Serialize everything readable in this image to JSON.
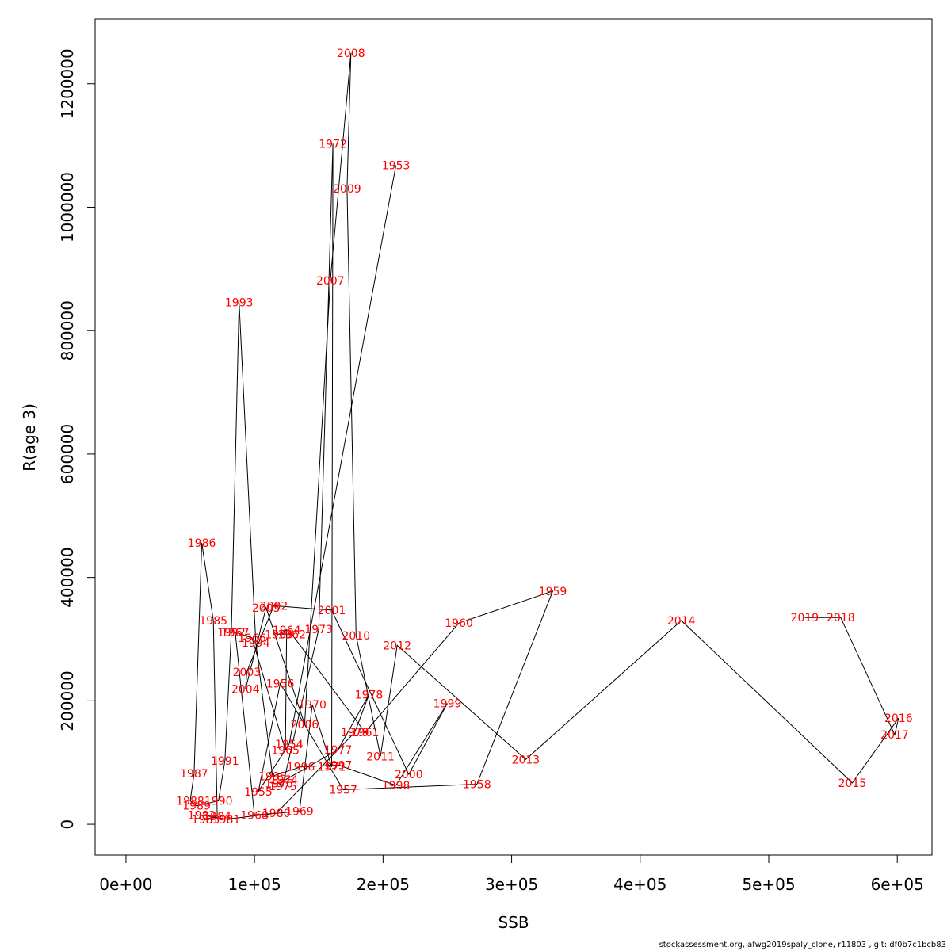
{
  "chart_data": {
    "type": "line",
    "xlabel": "SSB",
    "ylabel": "R(age 3)",
    "xlim": [
      -24000,
      627000
    ],
    "ylim": [
      -50000,
      1305000
    ],
    "xticks": [
      0,
      100000,
      200000,
      300000,
      400000,
      500000,
      600000
    ],
    "xtick_labels": [
      "0e+00",
      "1e+05",
      "2e+05",
      "3e+05",
      "4e+05",
      "5e+05",
      "6e+05"
    ],
    "yticks": [
      0,
      200000,
      400000,
      600000,
      800000,
      1000000,
      1200000
    ],
    "ytick_labels": [
      "0",
      "200000",
      "400000",
      "600000",
      "800000",
      "1000000",
      "1200000"
    ],
    "line_color": "#000000",
    "label_color": "#ff0000",
    "points": [
      {
        "year": "1953",
        "x": 210000,
        "y": 1068000
      },
      {
        "year": "1954",
        "x": 127000,
        "y": 130000
      },
      {
        "year": "1955",
        "x": 103000,
        "y": 53000
      },
      {
        "year": "1956",
        "x": 120000,
        "y": 228000
      },
      {
        "year": "1957",
        "x": 169000,
        "y": 56000
      },
      {
        "year": "1958",
        "x": 273000,
        "y": 65000
      },
      {
        "year": "1959",
        "x": 332000,
        "y": 378000
      },
      {
        "year": "1960",
        "x": 259000,
        "y": 326000
      },
      {
        "year": "1961",
        "x": 186000,
        "y": 149000
      },
      {
        "year": "1962",
        "x": 129000,
        "y": 308000
      },
      {
        "year": "1963",
        "x": 119000,
        "y": 308000
      },
      {
        "year": "1964",
        "x": 125000,
        "y": 315000
      },
      {
        "year": "1965",
        "x": 124000,
        "y": 120000
      },
      {
        "year": "1966",
        "x": 98000,
        "y": 302000
      },
      {
        "year": "1967",
        "x": 85000,
        "y": 311000
      },
      {
        "year": "1968",
        "x": 100000,
        "y": 15000
      },
      {
        "year": "1969",
        "x": 135000,
        "y": 21000
      },
      {
        "year": "1970",
        "x": 145000,
        "y": 194000
      },
      {
        "year": "1971",
        "x": 160000,
        "y": 93000
      },
      {
        "year": "1972",
        "x": 161000,
        "y": 1103000
      },
      {
        "year": "1973",
        "x": 150000,
        "y": 316000
      },
      {
        "year": "1974",
        "x": 123000,
        "y": 72000
      },
      {
        "year": "1975",
        "x": 122000,
        "y": 62000
      },
      {
        "year": "1976",
        "x": 119000,
        "y": 66000
      },
      {
        "year": "1977",
        "x": 165000,
        "y": 121000
      },
      {
        "year": "1978",
        "x": 189000,
        "y": 210000
      },
      {
        "year": "1979",
        "x": 178000,
        "y": 149000
      },
      {
        "year": "1980",
        "x": 117000,
        "y": 18000
      },
      {
        "year": "1981",
        "x": 78000,
        "y": 8000
      },
      {
        "year": "1982",
        "x": 59000,
        "y": 15000
      },
      {
        "year": "1983",
        "x": 62000,
        "y": 8000
      },
      {
        "year": "1984",
        "x": 71000,
        "y": 13000
      },
      {
        "year": "1985",
        "x": 68000,
        "y": 330000
      },
      {
        "year": "1986",
        "x": 59000,
        "y": 456000
      },
      {
        "year": "1987",
        "x": 53000,
        "y": 82000
      },
      {
        "year": "1988",
        "x": 50000,
        "y": 38000
      },
      {
        "year": "1989",
        "x": 55000,
        "y": 30000
      },
      {
        "year": "1990",
        "x": 72000,
        "y": 38000
      },
      {
        "year": "1991",
        "x": 77000,
        "y": 103000
      },
      {
        "year": "1992",
        "x": 82000,
        "y": 311000
      },
      {
        "year": "1993",
        "x": 88000,
        "y": 846000
      },
      {
        "year": "1994",
        "x": 101000,
        "y": 294000
      },
      {
        "year": "1995",
        "x": 114000,
        "y": 78000
      },
      {
        "year": "1996",
        "x": 136000,
        "y": 93000
      },
      {
        "year": "1997",
        "x": 165000,
        "y": 96000
      },
      {
        "year": "1998",
        "x": 210000,
        "y": 63000
      },
      {
        "year": "1999",
        "x": 250000,
        "y": 196000
      },
      {
        "year": "2000",
        "x": 220000,
        "y": 81000
      },
      {
        "year": "2001",
        "x": 160000,
        "y": 347000
      },
      {
        "year": "2002",
        "x": 115000,
        "y": 354000
      },
      {
        "year": "2003",
        "x": 94000,
        "y": 247000
      },
      {
        "year": "2004",
        "x": 93000,
        "y": 219000
      },
      {
        "year": "2005",
        "x": 109000,
        "y": 351000
      },
      {
        "year": "2006",
        "x": 139000,
        "y": 162000
      },
      {
        "year": "2007",
        "x": 159000,
        "y": 881000
      },
      {
        "year": "2008",
        "x": 175000,
        "y": 1250000
      },
      {
        "year": "2009",
        "x": 172000,
        "y": 1030000
      },
      {
        "year": "2010",
        "x": 179000,
        "y": 306000
      },
      {
        "year": "2011",
        "x": 198000,
        "y": 110000
      },
      {
        "year": "2012",
        "x": 211000,
        "y": 290000
      },
      {
        "year": "2013",
        "x": 311000,
        "y": 105000
      },
      {
        "year": "2014",
        "x": 432000,
        "y": 330000
      },
      {
        "year": "2015",
        "x": 565000,
        "y": 67000
      },
      {
        "year": "2016",
        "x": 601000,
        "y": 172000
      },
      {
        "year": "2017",
        "x": 598000,
        "y": 145000
      },
      {
        "year": "2018",
        "x": 556000,
        "y": 335000
      },
      {
        "year": "2019",
        "x": 528000,
        "y": 335000
      }
    ]
  },
  "footer": {
    "credit": "stockassessment.org, afwg2019spaly_clone, r11803 , git: df0b7c1bcb83"
  }
}
